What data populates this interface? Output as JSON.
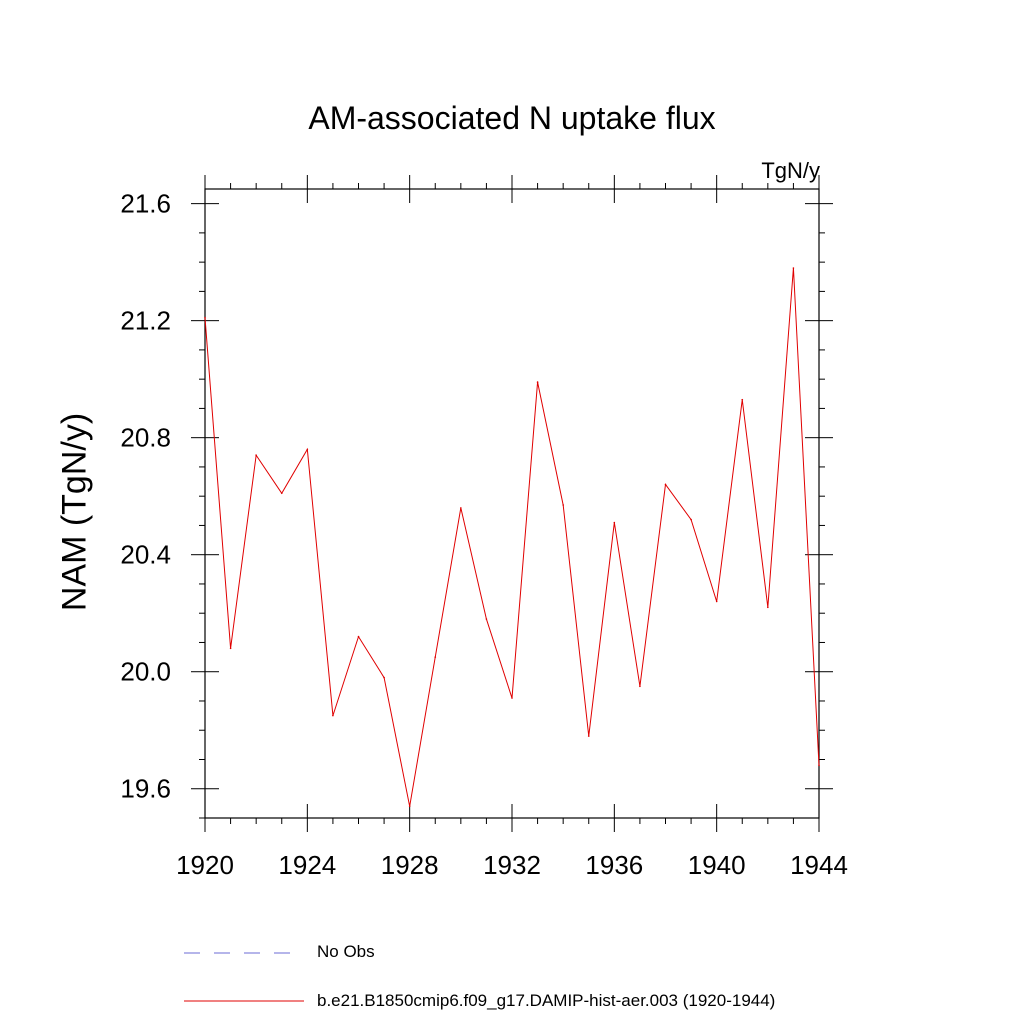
{
  "chart_data": {
    "type": "line",
    "title": "AM-associated N uptake flux",
    "units_label": "TgN/y",
    "ylabel": "NAM  (TgN/y)",
    "xlabel": "",
    "xlim": [
      1920,
      1944
    ],
    "ylim": [
      19.5,
      21.65
    ],
    "x_ticks": [
      1920,
      1924,
      1928,
      1932,
      1936,
      1940,
      1944
    ],
    "y_ticks": [
      19.6,
      20.0,
      20.4,
      20.8,
      21.2,
      21.6
    ],
    "y_tick_labels": [
      "19.6",
      "20.0",
      "20.4",
      "20.8",
      "21.2",
      "21.6"
    ],
    "grid": false,
    "legend_position": "bottom",
    "series": [
      {
        "name": "b.e21.B1850cmip6.f09_g17.DAMIP-hist-aer.003 (1920-1944)",
        "color": "#e00000",
        "dash": "solid",
        "x": [
          1920,
          1921,
          1922,
          1923,
          1924,
          1925,
          1926,
          1927,
          1928,
          1929,
          1930,
          1931,
          1932,
          1933,
          1934,
          1935,
          1936,
          1937,
          1938,
          1939,
          1940,
          1941,
          1942,
          1943,
          1944
        ],
        "values": [
          21.21,
          20.08,
          20.74,
          20.61,
          20.76,
          19.85,
          20.12,
          19.98,
          19.54,
          20.05,
          20.56,
          20.18,
          19.91,
          20.99,
          20.57,
          19.78,
          20.51,
          19.95,
          20.64,
          20.52,
          20.24,
          20.93,
          20.22,
          21.38,
          19.68
        ]
      }
    ],
    "legend": [
      {
        "label": "No Obs",
        "color": "#6b6bd6",
        "dash": "dashed"
      },
      {
        "label": "b.e21.B1850cmip6.f09_g17.DAMIP-hist-aer.003 (1920-1944)",
        "color": "#e00000",
        "dash": "solid"
      }
    ]
  }
}
